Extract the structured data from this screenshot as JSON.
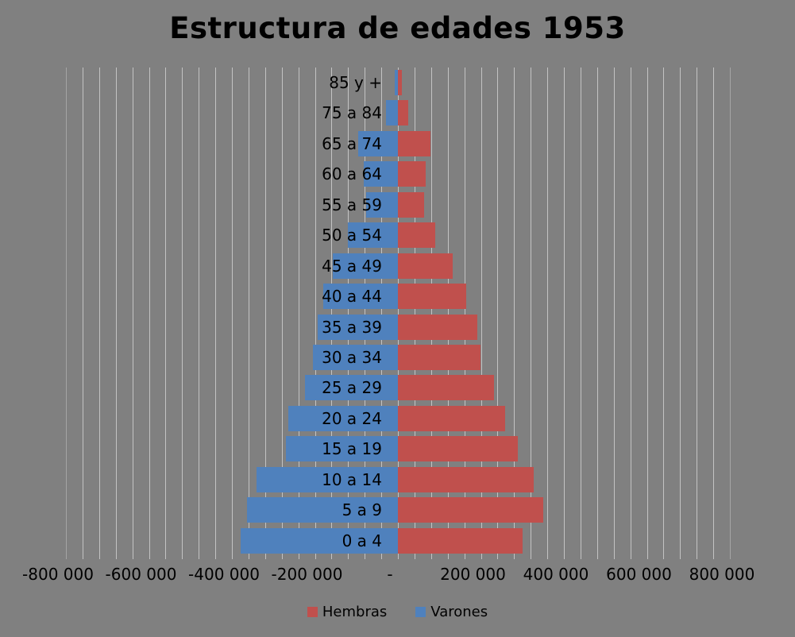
{
  "chart_data": {
    "type": "bar",
    "variant": "population-pyramid",
    "title": "Estructura de edades 1953",
    "categories": [
      "85 y +",
      "75 a 84",
      "65 a 74",
      "60 a 64",
      "55 a 59",
      "50 a 54",
      "45 a 49",
      "40 a 44",
      "35 a 39",
      "30 a 34",
      "25 a 29",
      "20 a 24",
      "15 a 19",
      "10 a 14",
      "5 a 9",
      "0 a 4"
    ],
    "series": [
      {
        "name": "Varones",
        "color": "#4F81BD",
        "side": "left",
        "plotted_sign": "negative",
        "values": [
          8000,
          28000,
          95000,
          82000,
          77000,
          120000,
          157000,
          180000,
          193000,
          204000,
          223000,
          264000,
          270000,
          340000,
          363000,
          378000
        ]
      },
      {
        "name": "Hembras",
        "color": "#C0504D",
        "side": "right",
        "plotted_sign": "positive",
        "values": [
          10000,
          25000,
          78000,
          67000,
          64000,
          90000,
          133000,
          164000,
          192000,
          199000,
          231000,
          258000,
          289000,
          327000,
          350000,
          300000
        ]
      }
    ],
    "xlim": [
      -800000,
      800000
    ],
    "gridline_interval": 40000,
    "grid": "vertical-on",
    "x_tick_values": [
      -800000,
      -600000,
      -400000,
      -200000,
      0,
      200000,
      400000,
      600000,
      800000
    ],
    "x_tick_labels": [
      "-800 000",
      "-600 000",
      "-400 000",
      "-200 000",
      "-",
      "200 000",
      "400 000",
      "600 000",
      "800 000"
    ],
    "legend": {
      "position": "bottom",
      "items": [
        {
          "label": "Hembras",
          "color": "#C0504D"
        },
        {
          "label": "Varones",
          "color": "#4F81BD"
        }
      ]
    },
    "colors": {
      "background": "#808080",
      "gridline": "#C3C3C3",
      "text": "#000000",
      "hembras_red": "#C0504D",
      "varones_blue": "#4F81BD"
    }
  }
}
